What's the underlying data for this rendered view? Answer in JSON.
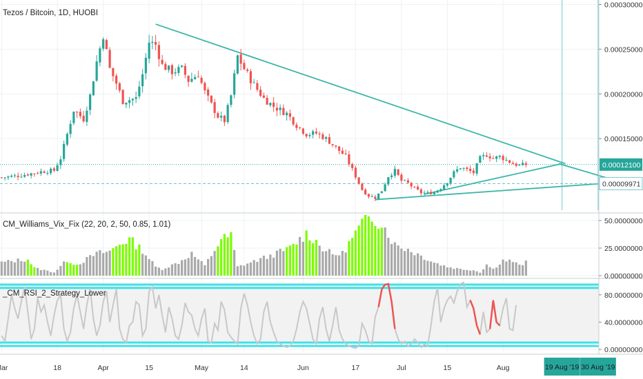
{
  "colors": {
    "up": "#26a69a",
    "down": "#ef5350",
    "trendline": "#3bb6a8",
    "vixGreen": "#7CFC00",
    "vixGray": "#a9a9a9",
    "rsiLine": "#c8c8c8",
    "rsiHot": "#ef5350",
    "band": "#40e0e8",
    "tagBg": "#26a69a",
    "vline": "#8ed0d8"
  },
  "chart_data": [
    {
      "type": "candlestick",
      "title": "Tezos / Bitcoin, 1D, HUOBI",
      "price_axis": {
        "ticks": [
          "0.00030000",
          "0.00025000",
          "0.00020000",
          "0.00015000"
        ],
        "tick_values": [
          0.0003,
          0.00025,
          0.0002,
          0.00015
        ],
        "ylim": [
          7e-05,
          0.000305
        ]
      },
      "price_tags": [
        {
          "label": "0.00012100",
          "value": 0.000121,
          "style": "filled"
        },
        {
          "label": "0.00009971",
          "value": 9.971e-05,
          "style": "outline"
        }
      ],
      "time_axis": {
        "labels": [
          "Mar",
          "18",
          "Apr",
          "15",
          "May",
          "14",
          "Jun",
          "17",
          "Jul",
          "15",
          "Aug"
        ],
        "label_days": [
          0,
          17,
          31,
          45,
          61,
          74,
          92,
          108,
          122,
          136,
          153
        ]
      },
      "date_tags": [
        {
          "label": "19 Aug '19",
          "day": 171
        },
        {
          "label": "30 Aug '19",
          "day": 182
        }
      ],
      "trendlines": [
        {
          "from": [
            47,
            0.000278
          ],
          "to": [
            172,
            0.000122
          ]
        },
        {
          "from": [
            114,
            8.18e-05
          ],
          "to": [
            182,
            9.95e-05
          ]
        },
        {
          "from": [
            129,
            8.78e-05
          ],
          "to": [
            171,
            0.000122
          ]
        },
        {
          "from": [
            170,
            0.000122
          ],
          "to": [
            188,
            0.0001025
          ]
        }
      ],
      "anchors": [
        [
          0,
          0.0001065
        ],
        [
          6,
          0.000109
        ],
        [
          12,
          0.000113
        ],
        [
          16,
          0.0001145
        ],
        [
          18,
          0.000128
        ],
        [
          20,
          0.000155
        ],
        [
          22,
          0.000182
        ],
        [
          25,
          0.000172
        ],
        [
          27,
          0.000198
        ],
        [
          29,
          0.000236
        ],
        [
          31,
          0.000266
        ],
        [
          33,
          0.000228
        ],
        [
          35,
          0.000212
        ],
        [
          37,
          0.000192
        ],
        [
          41,
          0.000195
        ],
        [
          43,
          0.000222
        ],
        [
          45,
          0.000258
        ],
        [
          47,
          0.000255
        ],
        [
          49,
          0.000232
        ],
        [
          52,
          0.000225
        ],
        [
          55,
          0.000228
        ],
        [
          57,
          0.000215
        ],
        [
          60,
          0.000222
        ],
        [
          62,
          0.000202
        ],
        [
          64,
          0.000188
        ],
        [
          66,
          0.000175
        ],
        [
          68,
          0.00017
        ],
        [
          70,
          0.000198
        ],
        [
          72,
          0.000242
        ],
        [
          74,
          0.000228
        ],
        [
          77,
          0.00021
        ],
        [
          80,
          0.000195
        ],
        [
          83,
          0.000186
        ],
        [
          87,
          0.000178
        ],
        [
          90,
          0.000165
        ],
        [
          93,
          0.000155
        ],
        [
          96,
          0.000156
        ],
        [
          99,
          0.00015
        ],
        [
          102,
          0.00014
        ],
        [
          105,
          0.00013
        ],
        [
          108,
          0.000108
        ],
        [
          110,
          9.3e-05
        ],
        [
          112,
          8.6e-05
        ],
        [
          114,
          8.4e-05
        ],
        [
          116,
          9.2e-05
        ],
        [
          118,
          0.000108
        ],
        [
          120,
          0.000114
        ],
        [
          122,
          0.000103
        ],
        [
          124,
          0.0001
        ],
        [
          126,
          9.4e-05
        ],
        [
          128,
          8.95e-05
        ],
        [
          130,
          8.9e-05
        ],
        [
          132,
          9e-05
        ],
        [
          134,
          9.5e-05
        ],
        [
          136,
          0.000102
        ],
        [
          138,
          0.000112
        ],
        [
          140,
          0.000118
        ],
        [
          142,
          0.000115
        ],
        [
          144,
          0.000112
        ],
        [
          146,
          0.000128
        ],
        [
          148,
          0.000132
        ],
        [
          150,
          0.000128
        ],
        [
          152,
          0.00013
        ],
        [
          154,
          0.000126
        ],
        [
          156,
          0.000122
        ],
        [
          158,
          0.00012
        ],
        [
          160,
          0.000121
        ]
      ],
      "last_day": 160
    },
    {
      "type": "bar",
      "title": "CM_Williams_Vix_Fix (22, 20, 2, 50, 0.85, 1.01)",
      "axis_ticks": [
        "50.00000000",
        "25.00000000",
        "0.00000000"
      ],
      "tick_values": [
        50,
        25,
        0
      ],
      "ylim": [
        0,
        55
      ],
      "anchors": [
        [
          0,
          12
        ],
        [
          8,
          15
        ],
        [
          10,
          7
        ],
        [
          16,
          3
        ],
        [
          20,
          14
        ],
        [
          23,
          10
        ],
        [
          29,
          20
        ],
        [
          33,
          22
        ],
        [
          36,
          29
        ],
        [
          39,
          33
        ],
        [
          43,
          23
        ],
        [
          47,
          8
        ],
        [
          49,
          6
        ],
        [
          54,
          12
        ],
        [
          58,
          20
        ],
        [
          62,
          9
        ],
        [
          67,
          33
        ],
        [
          70,
          36
        ],
        [
          72,
          8
        ],
        [
          76,
          12
        ],
        [
          82,
          18
        ],
        [
          88,
          25
        ],
        [
          93,
          38
        ],
        [
          95,
          34
        ],
        [
          98,
          25
        ],
        [
          101,
          19
        ],
        [
          104,
          20
        ],
        [
          107,
          34
        ],
        [
          110,
          47
        ],
        [
          113,
          53
        ],
        [
          116,
          48
        ],
        [
          120,
          28
        ],
        [
          124,
          24
        ],
        [
          128,
          18
        ],
        [
          132,
          12
        ],
        [
          136,
          8
        ],
        [
          140,
          6
        ],
        [
          144,
          5
        ],
        [
          146,
          3
        ],
        [
          148,
          10
        ],
        [
          150,
          6
        ],
        [
          153,
          14
        ],
        [
          156,
          13
        ],
        [
          158,
          9
        ],
        [
          160,
          12
        ]
      ],
      "green_ranges": [
        [
          8,
          10
        ],
        [
          20,
          23
        ],
        [
          34,
          42
        ],
        [
          66,
          70
        ],
        [
          87,
          90
        ],
        [
          93,
          96
        ],
        [
          106,
          116
        ]
      ],
      "last_day": 160
    },
    {
      "type": "line",
      "title": "_CM_RSI_2_Strategy_Lower",
      "axis_ticks": [
        "80.00000000",
        "40.00000000",
        "0.00000000"
      ],
      "tick_values": [
        80,
        40,
        0
      ],
      "ylim": [
        -5,
        100
      ],
      "bands": [
        90,
        95,
        5,
        10
      ],
      "series": [
        20,
        12,
        45,
        80,
        60,
        45,
        70,
        92,
        55,
        15,
        30,
        75,
        55,
        65,
        40,
        20,
        50,
        72,
        80,
        30,
        12,
        25,
        60,
        80,
        55,
        30,
        65,
        90,
        45,
        20,
        35,
        70,
        85,
        40,
        65,
        88,
        30,
        15,
        10,
        35,
        40,
        70,
        65,
        20,
        30,
        85,
        92,
        60,
        80,
        50,
        25,
        62,
        45,
        20,
        15,
        35,
        68,
        55,
        50,
        30,
        20,
        45,
        60,
        12,
        10,
        38,
        28,
        70,
        58,
        25,
        18,
        12,
        8,
        60,
        82,
        65,
        40,
        20,
        8,
        15,
        55,
        70,
        40,
        25,
        12,
        8,
        5,
        3,
        5,
        12,
        30,
        55,
        70,
        60,
        38,
        15,
        8,
        45,
        62,
        30,
        12,
        35,
        62,
        28,
        15,
        8,
        5,
        3,
        2,
        5,
        38,
        28,
        12,
        8,
        48,
        62,
        88,
        95,
        96,
        70,
        30,
        15,
        8,
        12,
        5,
        8,
        15,
        10,
        3,
        8,
        5,
        35,
        70,
        90,
        40,
        60,
        72,
        78,
        68,
        85,
        96,
        98,
        62,
        72,
        60,
        35,
        22,
        55,
        25,
        30,
        72,
        40,
        35,
        60,
        75,
        30,
        28,
        65
      ],
      "hot_ranges": [
        [
          115,
          120
        ],
        [
          143,
          146
        ],
        [
          149,
          152
        ]
      ],
      "day_offset": 0
    }
  ]
}
